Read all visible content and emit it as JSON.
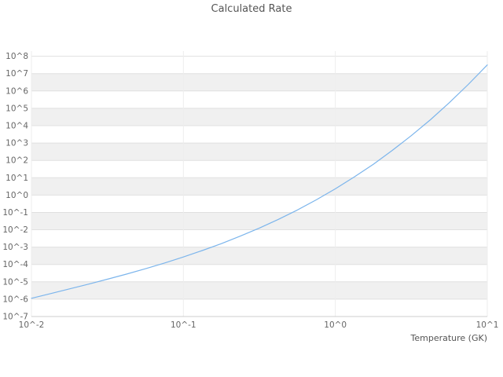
{
  "chart_data": {
    "type": "line",
    "title": "Calculated Rate",
    "xlabel": "Temperature (GK)",
    "ylabel": "",
    "x_scale": "log",
    "y_scale": "log",
    "xlim": [
      0.01,
      10
    ],
    "ylim": [
      1e-07,
      200000000.0
    ],
    "grid": true,
    "legend": false,
    "line_color": "#7cb5ec",
    "band_color": "#f0f0f0",
    "gridline_color": "#e0e0e0",
    "tick_color": "#666666",
    "x_tick_labels": [
      "10^-2",
      "10^-1",
      "10^0",
      "10^1"
    ],
    "y_tick_labels": [
      "10^8",
      "10^7",
      "10^6",
      "10^5",
      "10^4",
      "10^3",
      "10^2",
      "10^1",
      "10^0",
      "10^-1",
      "10^-2",
      "10^-3",
      "10^-4",
      "10^-5",
      "10^-6",
      "10^-7"
    ],
    "series": [
      {
        "name": "Calculated Rate",
        "x": [
          0.01,
          0.0133,
          0.0178,
          0.0237,
          0.0316,
          0.0422,
          0.0562,
          0.075,
          0.1,
          0.133,
          0.178,
          0.237,
          0.316,
          0.422,
          0.562,
          0.75,
          1.0,
          1.33,
          1.78,
          2.37,
          3.16,
          4.22,
          5.62,
          7.5,
          10.0
        ],
        "y": [
          1.12e-06,
          2.08e-06,
          3.92e-06,
          7.35e-06,
          1.41e-05,
          2.79e-05,
          5.68e-05,
          0.000121,
          0.000269,
          0.000634,
          0.00159,
          0.0043,
          0.0125,
          0.0397,
          0.138,
          0.533,
          2.29,
          11.0,
          60.1,
          373,
          2660,
          21900,
          210000,
          2370000,
          31600000
        ]
      }
    ]
  }
}
